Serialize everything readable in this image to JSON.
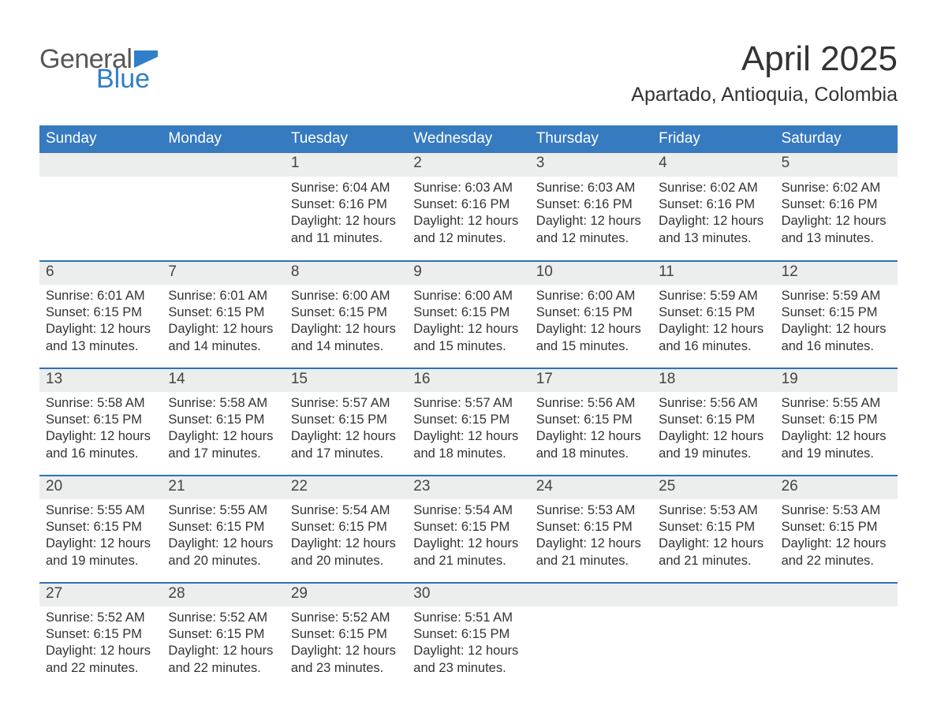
{
  "logo": {
    "word1": "General",
    "word2": "Blue",
    "icon_color": "#2f7fca",
    "text_color_gray": "#575757"
  },
  "title": "April 2025",
  "location": "Apartado, Antioquia, Colombia",
  "colors": {
    "header_bg": "#367ac0",
    "rule": "#2f72b8",
    "daynum_bg": "#eceded",
    "text": "#333333"
  },
  "days_of_week": [
    "Sunday",
    "Monday",
    "Tuesday",
    "Wednesday",
    "Thursday",
    "Friday",
    "Saturday"
  ],
  "weeks": [
    [
      null,
      null,
      {
        "n": "1",
        "sunrise": "Sunrise: 6:04 AM",
        "sunset": "Sunset: 6:16 PM",
        "daylight": "Daylight: 12 hours and 11 minutes."
      },
      {
        "n": "2",
        "sunrise": "Sunrise: 6:03 AM",
        "sunset": "Sunset: 6:16 PM",
        "daylight": "Daylight: 12 hours and 12 minutes."
      },
      {
        "n": "3",
        "sunrise": "Sunrise: 6:03 AM",
        "sunset": "Sunset: 6:16 PM",
        "daylight": "Daylight: 12 hours and 12 minutes."
      },
      {
        "n": "4",
        "sunrise": "Sunrise: 6:02 AM",
        "sunset": "Sunset: 6:16 PM",
        "daylight": "Daylight: 12 hours and 13 minutes."
      },
      {
        "n": "5",
        "sunrise": "Sunrise: 6:02 AM",
        "sunset": "Sunset: 6:16 PM",
        "daylight": "Daylight: 12 hours and 13 minutes."
      }
    ],
    [
      {
        "n": "6",
        "sunrise": "Sunrise: 6:01 AM",
        "sunset": "Sunset: 6:15 PM",
        "daylight": "Daylight: 12 hours and 13 minutes."
      },
      {
        "n": "7",
        "sunrise": "Sunrise: 6:01 AM",
        "sunset": "Sunset: 6:15 PM",
        "daylight": "Daylight: 12 hours and 14 minutes."
      },
      {
        "n": "8",
        "sunrise": "Sunrise: 6:00 AM",
        "sunset": "Sunset: 6:15 PM",
        "daylight": "Daylight: 12 hours and 14 minutes."
      },
      {
        "n": "9",
        "sunrise": "Sunrise: 6:00 AM",
        "sunset": "Sunset: 6:15 PM",
        "daylight": "Daylight: 12 hours and 15 minutes."
      },
      {
        "n": "10",
        "sunrise": "Sunrise: 6:00 AM",
        "sunset": "Sunset: 6:15 PM",
        "daylight": "Daylight: 12 hours and 15 minutes."
      },
      {
        "n": "11",
        "sunrise": "Sunrise: 5:59 AM",
        "sunset": "Sunset: 6:15 PM",
        "daylight": "Daylight: 12 hours and 16 minutes."
      },
      {
        "n": "12",
        "sunrise": "Sunrise: 5:59 AM",
        "sunset": "Sunset: 6:15 PM",
        "daylight": "Daylight: 12 hours and 16 minutes."
      }
    ],
    [
      {
        "n": "13",
        "sunrise": "Sunrise: 5:58 AM",
        "sunset": "Sunset: 6:15 PM",
        "daylight": "Daylight: 12 hours and 16 minutes."
      },
      {
        "n": "14",
        "sunrise": "Sunrise: 5:58 AM",
        "sunset": "Sunset: 6:15 PM",
        "daylight": "Daylight: 12 hours and 17 minutes."
      },
      {
        "n": "15",
        "sunrise": "Sunrise: 5:57 AM",
        "sunset": "Sunset: 6:15 PM",
        "daylight": "Daylight: 12 hours and 17 minutes."
      },
      {
        "n": "16",
        "sunrise": "Sunrise: 5:57 AM",
        "sunset": "Sunset: 6:15 PM",
        "daylight": "Daylight: 12 hours and 18 minutes."
      },
      {
        "n": "17",
        "sunrise": "Sunrise: 5:56 AM",
        "sunset": "Sunset: 6:15 PM",
        "daylight": "Daylight: 12 hours and 18 minutes."
      },
      {
        "n": "18",
        "sunrise": "Sunrise: 5:56 AM",
        "sunset": "Sunset: 6:15 PM",
        "daylight": "Daylight: 12 hours and 19 minutes."
      },
      {
        "n": "19",
        "sunrise": "Sunrise: 5:55 AM",
        "sunset": "Sunset: 6:15 PM",
        "daylight": "Daylight: 12 hours and 19 minutes."
      }
    ],
    [
      {
        "n": "20",
        "sunrise": "Sunrise: 5:55 AM",
        "sunset": "Sunset: 6:15 PM",
        "daylight": "Daylight: 12 hours and 19 minutes."
      },
      {
        "n": "21",
        "sunrise": "Sunrise: 5:55 AM",
        "sunset": "Sunset: 6:15 PM",
        "daylight": "Daylight: 12 hours and 20 minutes."
      },
      {
        "n": "22",
        "sunrise": "Sunrise: 5:54 AM",
        "sunset": "Sunset: 6:15 PM",
        "daylight": "Daylight: 12 hours and 20 minutes."
      },
      {
        "n": "23",
        "sunrise": "Sunrise: 5:54 AM",
        "sunset": "Sunset: 6:15 PM",
        "daylight": "Daylight: 12 hours and 21 minutes."
      },
      {
        "n": "24",
        "sunrise": "Sunrise: 5:53 AM",
        "sunset": "Sunset: 6:15 PM",
        "daylight": "Daylight: 12 hours and 21 minutes."
      },
      {
        "n": "25",
        "sunrise": "Sunrise: 5:53 AM",
        "sunset": "Sunset: 6:15 PM",
        "daylight": "Daylight: 12 hours and 21 minutes."
      },
      {
        "n": "26",
        "sunrise": "Sunrise: 5:53 AM",
        "sunset": "Sunset: 6:15 PM",
        "daylight": "Daylight: 12 hours and 22 minutes."
      }
    ],
    [
      {
        "n": "27",
        "sunrise": "Sunrise: 5:52 AM",
        "sunset": "Sunset: 6:15 PM",
        "daylight": "Daylight: 12 hours and 22 minutes."
      },
      {
        "n": "28",
        "sunrise": "Sunrise: 5:52 AM",
        "sunset": "Sunset: 6:15 PM",
        "daylight": "Daylight: 12 hours and 22 minutes."
      },
      {
        "n": "29",
        "sunrise": "Sunrise: 5:52 AM",
        "sunset": "Sunset: 6:15 PM",
        "daylight": "Daylight: 12 hours and 23 minutes."
      },
      {
        "n": "30",
        "sunrise": "Sunrise: 5:51 AM",
        "sunset": "Sunset: 6:15 PM",
        "daylight": "Daylight: 12 hours and 23 minutes."
      },
      null,
      null,
      null
    ]
  ]
}
